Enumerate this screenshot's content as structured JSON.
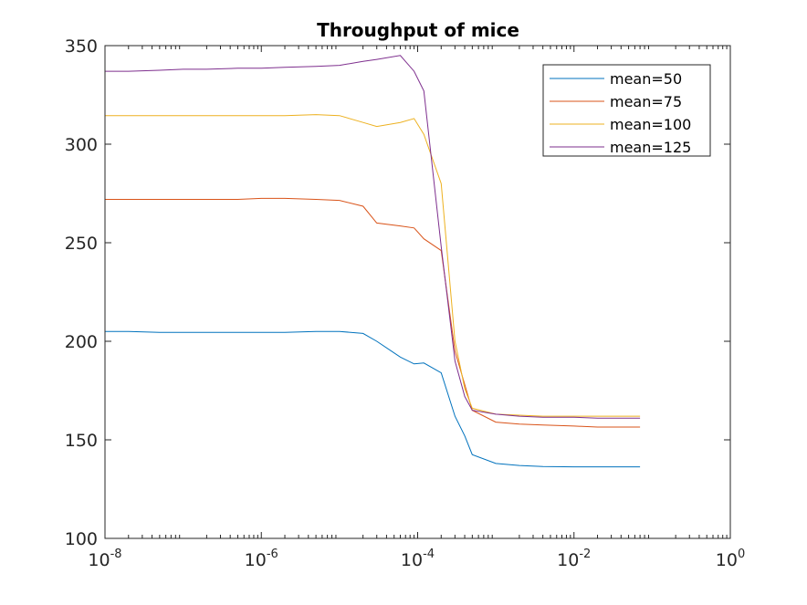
{
  "chart_data": {
    "type": "line",
    "title": "Throughput of mice",
    "xlabel": "",
    "ylabel": "",
    "x_scale": "log",
    "xlim": [
      1e-08,
      1
    ],
    "ylim": [
      100,
      350
    ],
    "grid": false,
    "legend_position": "top-right",
    "x_ticks": [
      {
        "base": "10",
        "exp": "-8"
      },
      {
        "base": "10",
        "exp": "-6"
      },
      {
        "base": "10",
        "exp": "-4"
      },
      {
        "base": "10",
        "exp": "-2"
      },
      {
        "base": "10",
        "exp": "0"
      }
    ],
    "y_ticks": [
      "100",
      "150",
      "200",
      "250",
      "300",
      "350"
    ],
    "x": [
      1e-08,
      2e-08,
      5e-08,
      1e-07,
      2e-07,
      5e-07,
      1e-06,
      2e-06,
      5e-06,
      1e-05,
      2e-05,
      3e-05,
      6e-05,
      9e-05,
      0.00012,
      0.0002,
      0.0003,
      0.0004,
      0.0005,
      0.001,
      0.002,
      0.004,
      0.01,
      0.02,
      0.04,
      0.07
    ],
    "series": [
      {
        "name": "mean=50",
        "color": "#0072BD",
        "values": [
          205,
          205,
          204.5,
          204.5,
          204.5,
          204.5,
          204.5,
          204.5,
          205,
          205,
          204,
          200,
          192,
          188.5,
          189,
          184,
          162,
          152,
          142.5,
          138,
          137,
          136.5,
          136.3,
          136.3,
          136.3,
          136.3
        ]
      },
      {
        "name": "mean=75",
        "color": "#D95319",
        "values": [
          272,
          272,
          272,
          272,
          272,
          272,
          272.5,
          272.5,
          272,
          271.5,
          268.5,
          260,
          258.5,
          257.5,
          252,
          246,
          195,
          178,
          165,
          159,
          158,
          157.5,
          157,
          156.5,
          156.5,
          156.5
        ]
      },
      {
        "name": "mean=100",
        "color": "#EDB120",
        "values": [
          314.5,
          314.5,
          314.5,
          314.5,
          314.5,
          314.5,
          314.5,
          314.5,
          315,
          314.5,
          311,
          309,
          311,
          313,
          305,
          280,
          200,
          176,
          166,
          163,
          162.5,
          162,
          162,
          162,
          162,
          162
        ]
      },
      {
        "name": "mean=125",
        "color": "#7E2F8E",
        "values": [
          337,
          337,
          337.5,
          338,
          338,
          338.5,
          338.5,
          339,
          339.5,
          340,
          342,
          343,
          345,
          337,
          327,
          248,
          190,
          172,
          165,
          163,
          162,
          161.5,
          161.5,
          161,
          161,
          161
        ]
      }
    ]
  }
}
